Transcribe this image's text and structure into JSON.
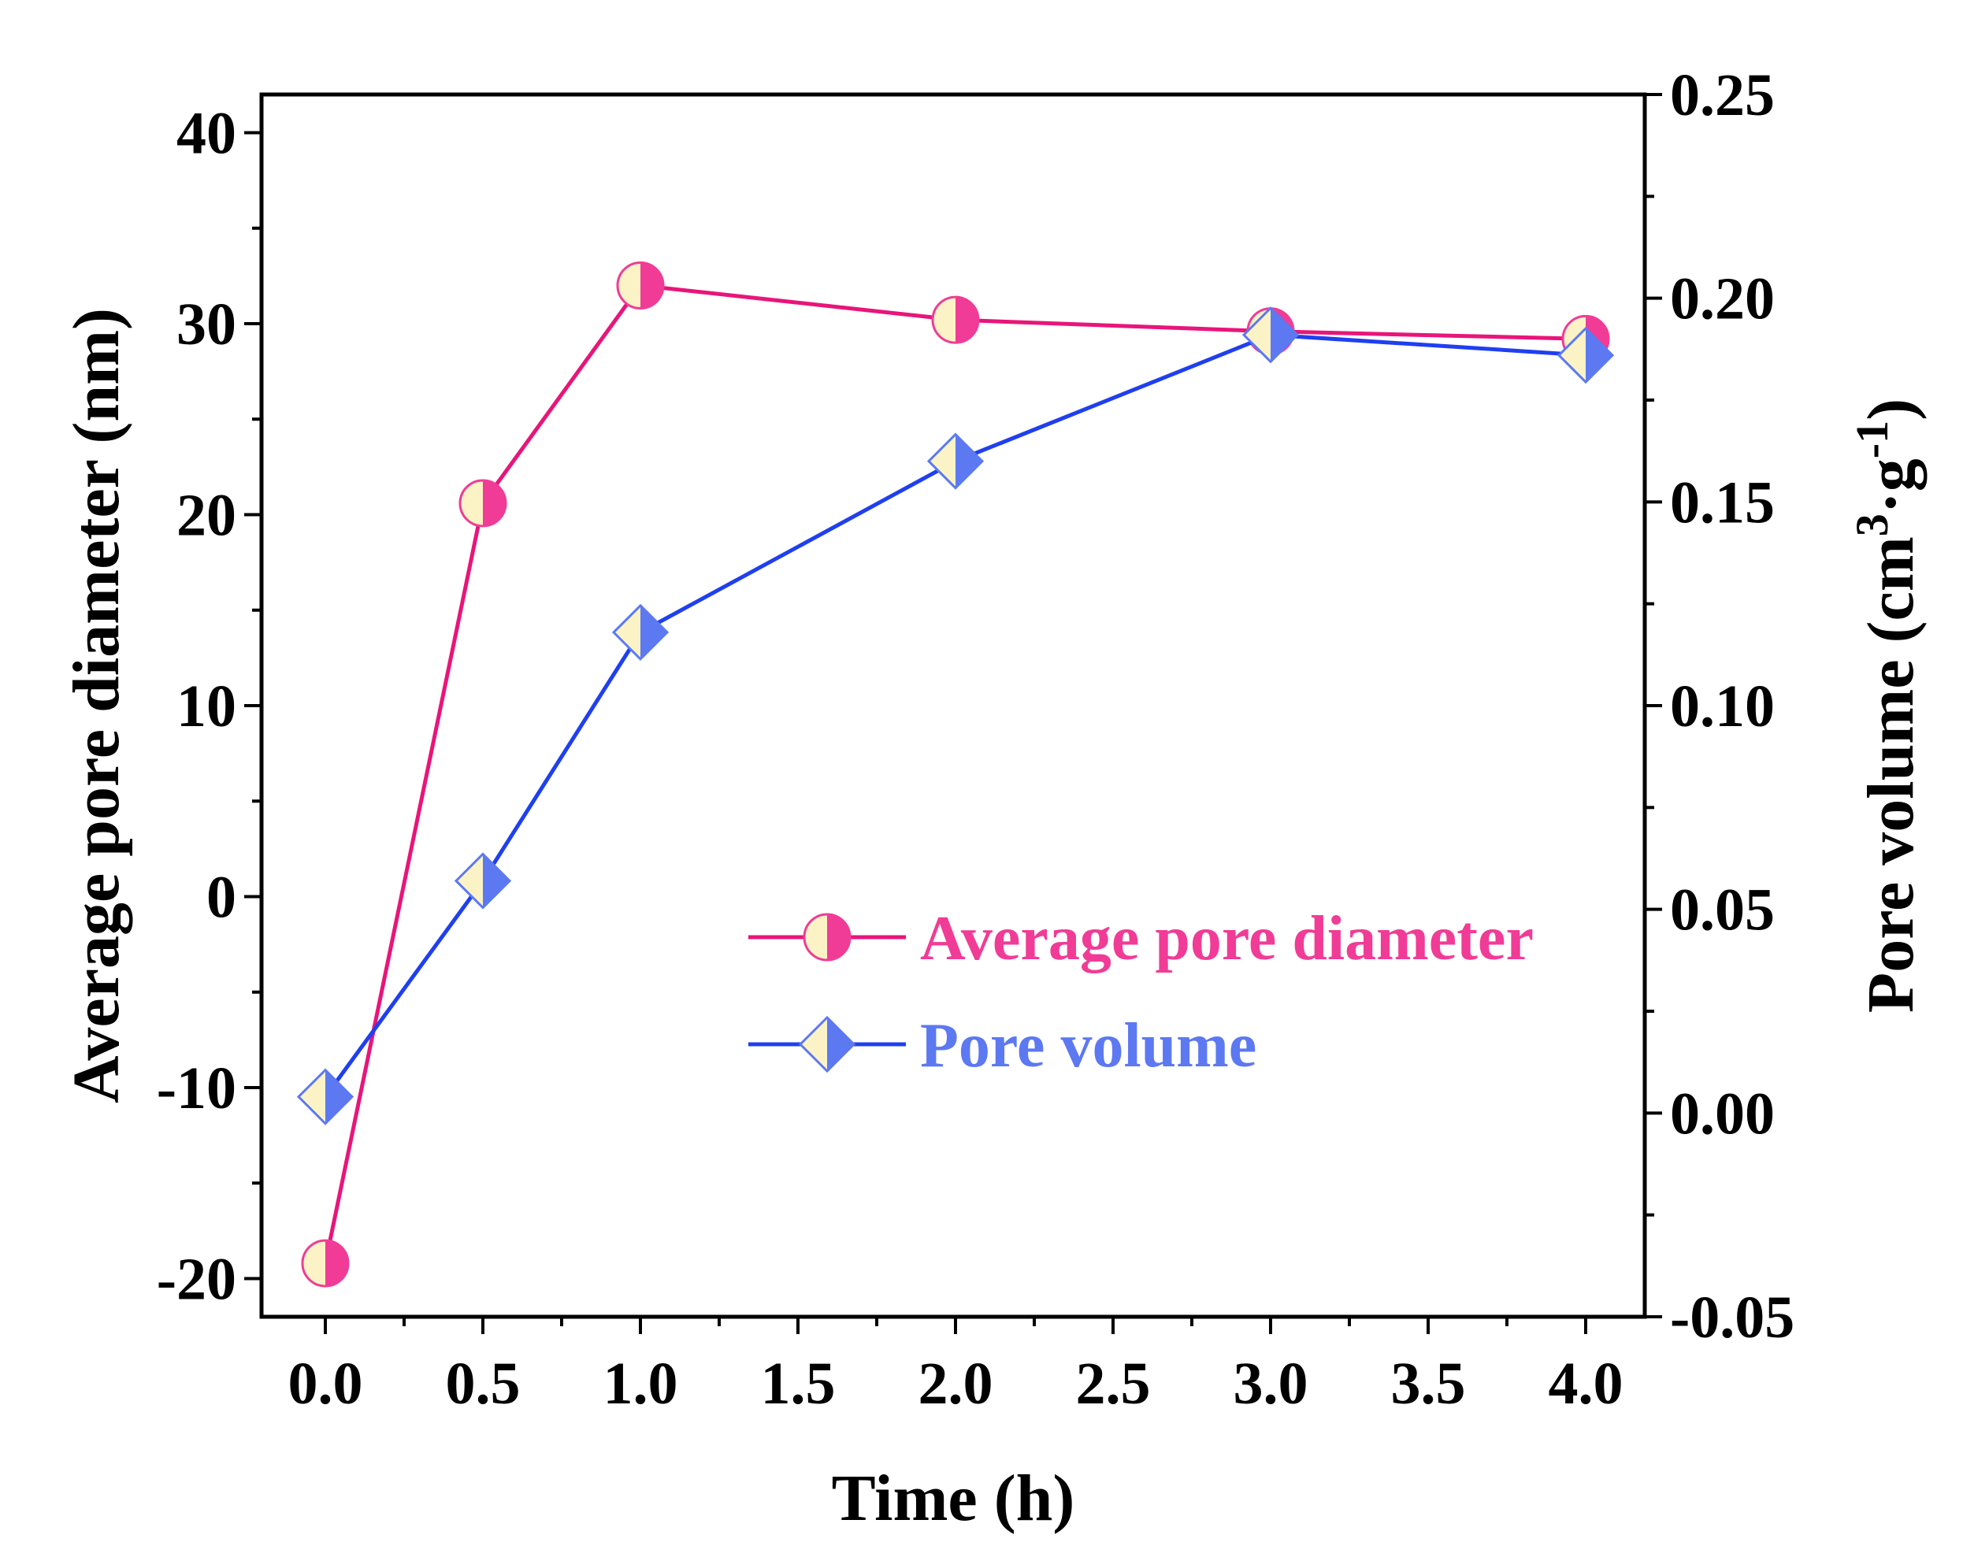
{
  "chart_data": {
    "type": "line",
    "dual_axis": true,
    "x": [
      0.0,
      0.5,
      1.0,
      2.0,
      3.0,
      4.0
    ],
    "xlabel": "Time (h)",
    "x_ticks": [
      "0.0",
      "0.5",
      "1.0",
      "1.5",
      "2.0",
      "2.5",
      "3.0",
      "3.5",
      "4.0"
    ],
    "ylabel_left": "Average pore diameter (nm)",
    "ylim_left": [
      -22,
      42
    ],
    "y_ticks_left": [
      -20,
      -10,
      0,
      10,
      20,
      30,
      40
    ],
    "y_tick_labels_left": [
      "-20",
      "-10",
      "0",
      "10",
      "20",
      "30",
      "40"
    ],
    "ylabel_right": {
      "main": "Pore volume (cm",
      "sup1": "3",
      "mid": "·g",
      "sup2": "-1",
      "end": ")"
    },
    "ylim_right": [
      -0.05,
      0.25
    ],
    "y_ticks_right": [
      -0.05,
      0.0,
      0.05,
      0.1,
      0.15,
      0.2,
      0.25
    ],
    "y_tick_labels_right": [
      "-0.05",
      "0.00",
      "0.05",
      "0.10",
      "0.15",
      "0.20",
      "0.25"
    ],
    "series": [
      {
        "name": "Average pore diameter",
        "axis": "left",
        "marker": "half-circle",
        "color": "#e8157a",
        "marker_fill": "#f03c96",
        "marker_light": "#fbf3c6",
        "text_color": "#f03c96",
        "values": [
          -19.2,
          20.6,
          32.0,
          30.2,
          29.6,
          29.2
        ]
      },
      {
        "name": "Pore volume",
        "axis": "right",
        "marker": "half-diamond",
        "color": "#1f3ff0",
        "marker_fill": "#5c79f2",
        "marker_light": "#fbf3c6",
        "text_color": "#5c79f2",
        "values": [
          0.004,
          0.057,
          0.118,
          0.16,
          0.191,
          0.186
        ]
      }
    ],
    "legend": {
      "position": "center-right",
      "entries": [
        "Average pore diameter",
        "Pore volume"
      ]
    }
  }
}
